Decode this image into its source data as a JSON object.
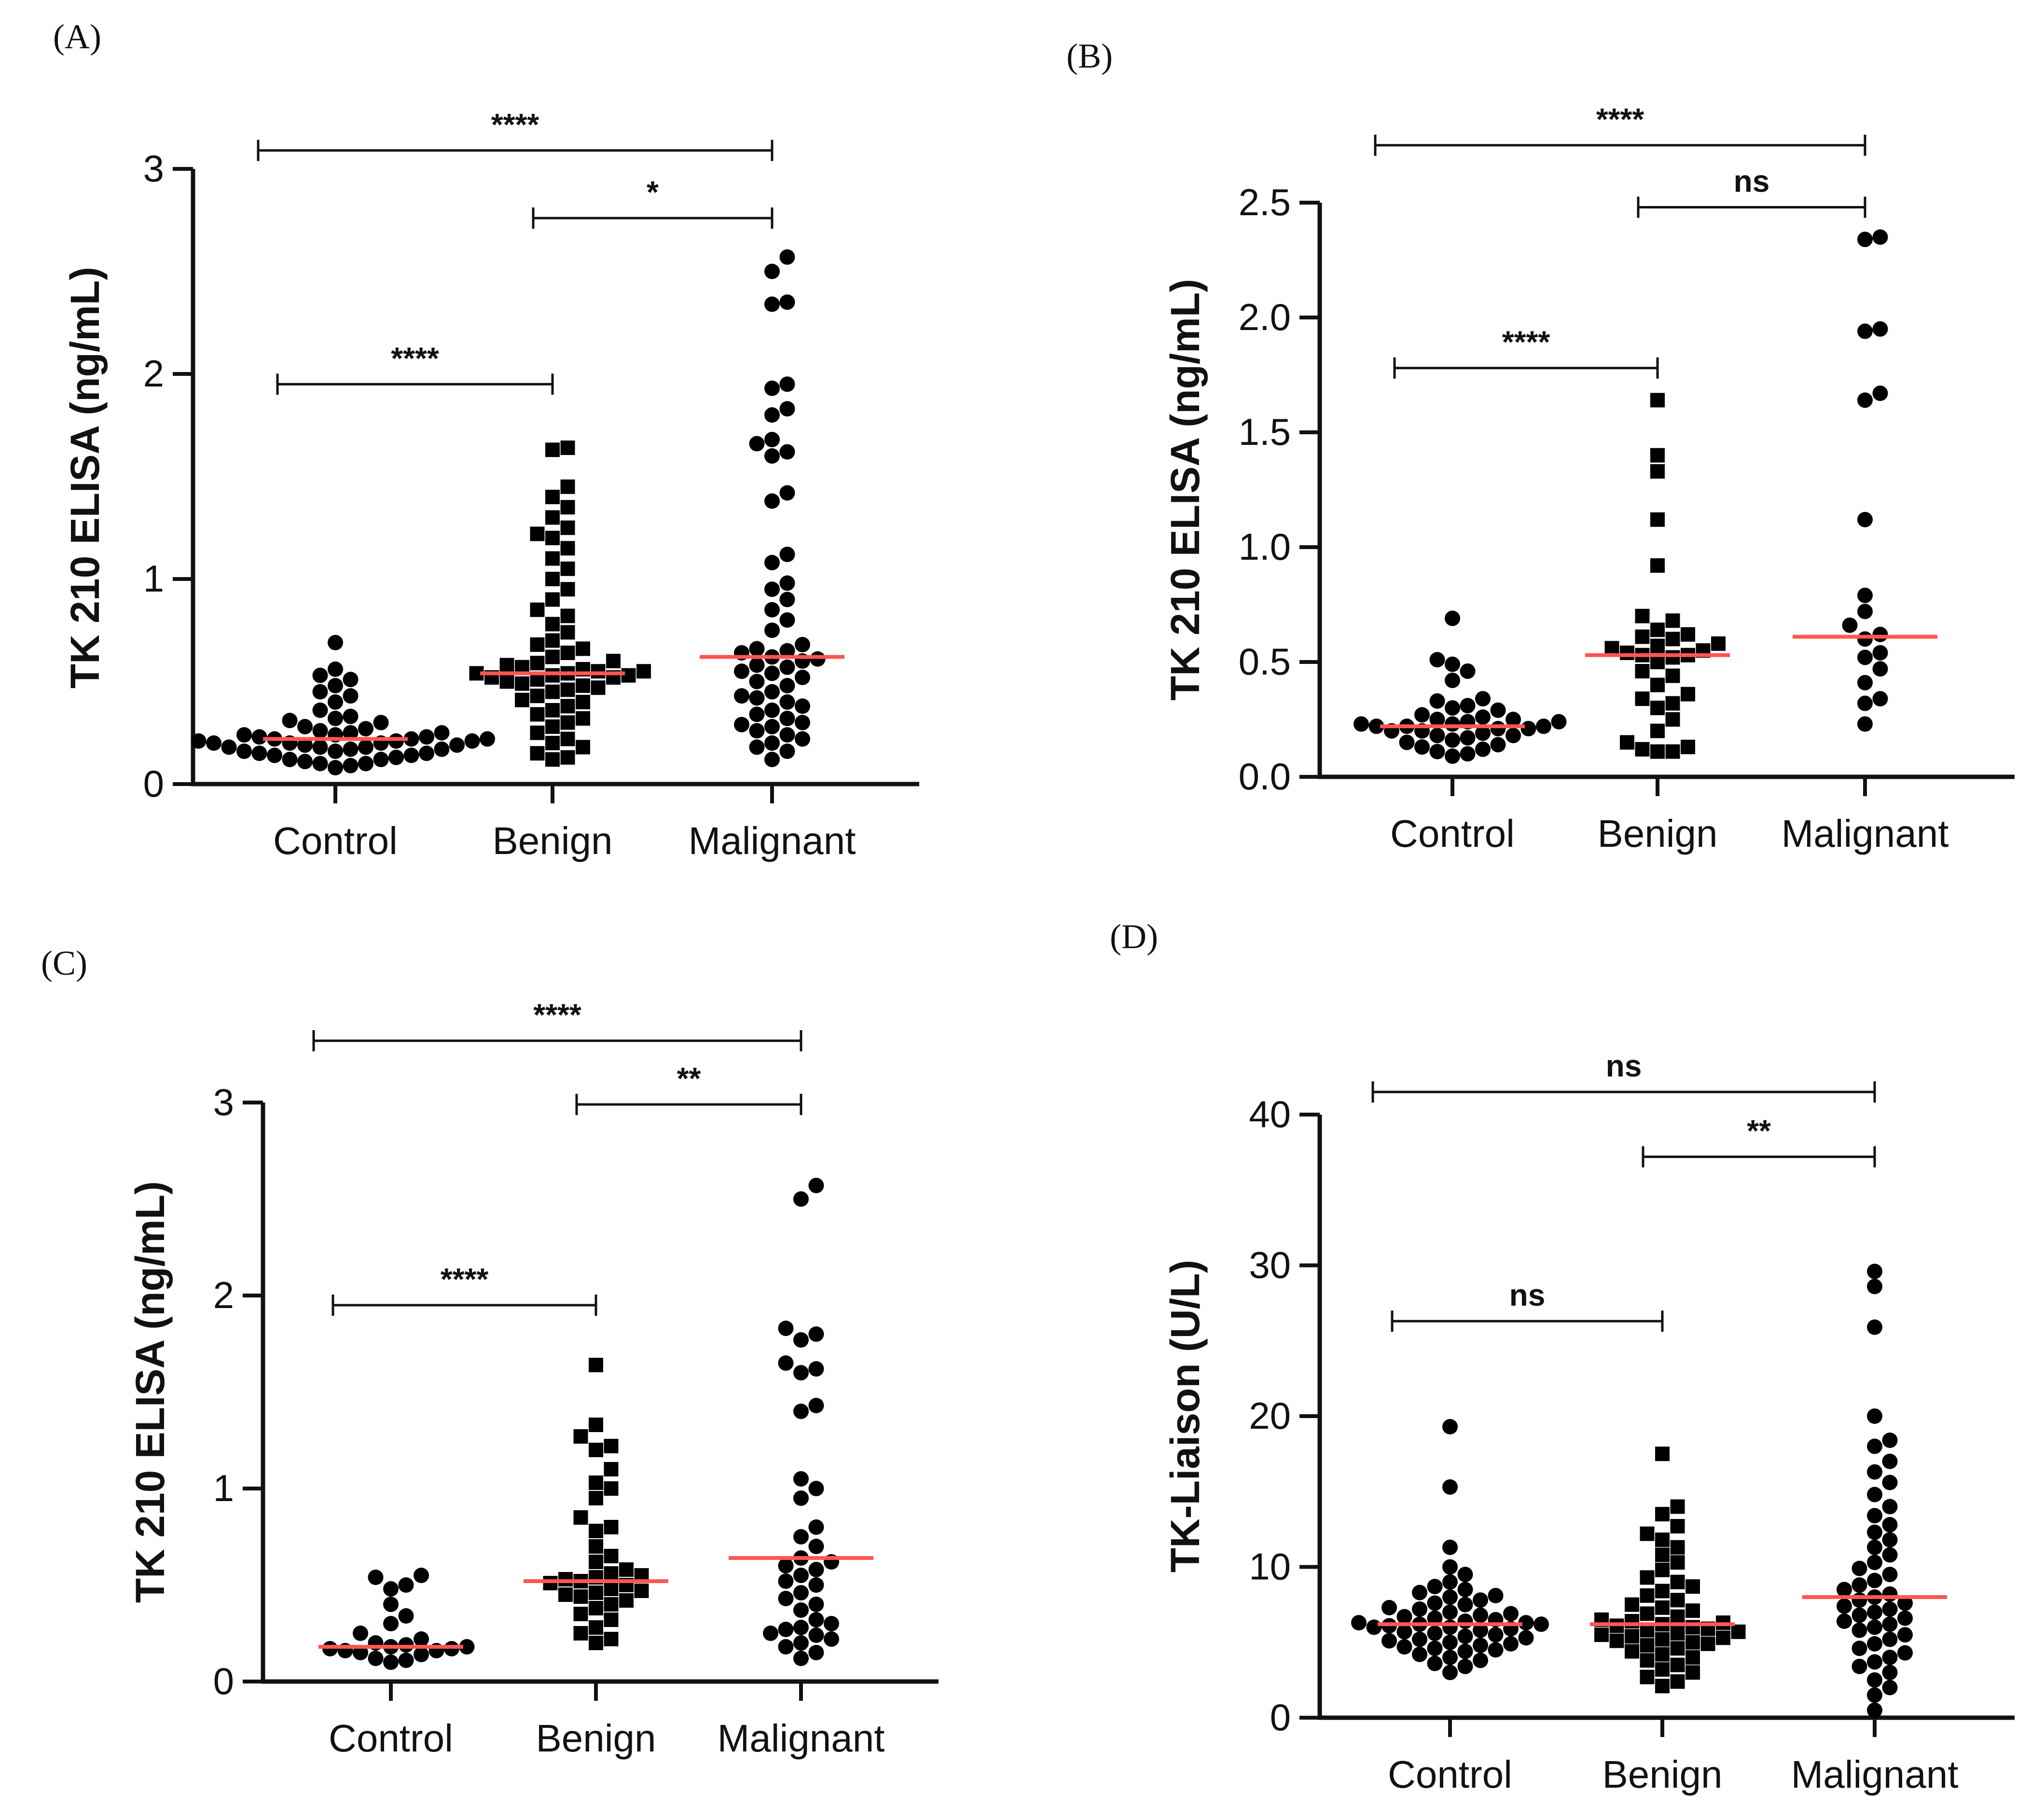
{
  "colors": {
    "marker": "#000000",
    "median": "#ff5555",
    "axis": "#111111"
  },
  "chart_data": [
    {
      "panel": "(A)",
      "type": "scatter",
      "categories": [
        "Control",
        "Benign",
        "Malignant"
      ],
      "markers": [
        "circle",
        "square",
        "circle"
      ],
      "ylabel": "TK 210 ELISA (ng/mL)",
      "ylim": [
        0,
        3
      ],
      "yticks": [
        "0",
        "1",
        "2",
        "3"
      ],
      "medians": [
        0.22,
        0.54,
        0.62
      ],
      "series": [
        {
          "values": [
            0.69,
            0.56,
            0.53,
            0.51,
            0.48,
            0.45,
            0.43,
            0.4,
            0.36,
            0.33,
            0.32,
            0.31,
            0.3,
            0.28,
            0.27,
            0.26,
            0.25,
            0.25,
            0.24,
            0.24,
            0.23,
            0.23,
            0.22,
            0.22,
            0.22,
            0.21,
            0.21,
            0.21,
            0.2,
            0.2,
            0.2,
            0.19,
            0.19,
            0.18,
            0.18,
            0.18,
            0.17,
            0.17,
            0.16,
            0.16,
            0.15,
            0.15,
            0.14,
            0.14,
            0.13,
            0.12,
            0.12,
            0.11,
            0.1,
            0.1,
            0.09,
            0.08
          ]
        },
        {
          "values": [
            1.64,
            1.63,
            1.45,
            1.4,
            1.35,
            1.3,
            1.25,
            1.22,
            1.2,
            1.15,
            1.1,
            1.05,
            1.0,
            0.95,
            0.9,
            0.85,
            0.82,
            0.78,
            0.74,
            0.7,
            0.68,
            0.66,
            0.64,
            0.62,
            0.6,
            0.59,
            0.58,
            0.57,
            0.56,
            0.55,
            0.55,
            0.54,
            0.54,
            0.53,
            0.53,
            0.52,
            0.52,
            0.51,
            0.5,
            0.49,
            0.48,
            0.47,
            0.46,
            0.45,
            0.43,
            0.41,
            0.4,
            0.38,
            0.36,
            0.34,
            0.32,
            0.3,
            0.28,
            0.25,
            0.22,
            0.2,
            0.18,
            0.15,
            0.13,
            0.12
          ]
        },
        {
          "values": [
            2.57,
            2.5,
            2.35,
            2.34,
            1.95,
            1.93,
            1.83,
            1.8,
            1.68,
            1.66,
            1.62,
            1.6,
            1.42,
            1.38,
            1.12,
            1.08,
            0.98,
            0.95,
            0.9,
            0.85,
            0.8,
            0.75,
            0.68,
            0.66,
            0.65,
            0.64,
            0.62,
            0.61,
            0.6,
            0.58,
            0.57,
            0.55,
            0.54,
            0.52,
            0.5,
            0.48,
            0.45,
            0.43,
            0.42,
            0.4,
            0.38,
            0.36,
            0.34,
            0.32,
            0.3,
            0.29,
            0.28,
            0.26,
            0.24,
            0.22,
            0.2,
            0.18,
            0.16,
            0.12
          ]
        }
      ],
      "comparisons": [
        {
          "from": 0,
          "to": 2,
          "label": "****",
          "level": 3.09
        },
        {
          "from": 1,
          "to": 2,
          "label": "*",
          "level": 2.76
        },
        {
          "from": 0,
          "to": 1,
          "label": "****",
          "level": 1.95
        }
      ]
    },
    {
      "panel": "(B)",
      "type": "scatter",
      "categories": [
        "Control",
        "Benign",
        "Malignant"
      ],
      "markers": [
        "circle",
        "square",
        "circle"
      ],
      "ylabel": "TK 210 ELISA (ng/mL)",
      "ylim": [
        0,
        2.5
      ],
      "yticks": [
        "0.0",
        "0.5",
        "1.0",
        "1.5",
        "2.0",
        "2.5"
      ],
      "medians": [
        0.22,
        0.53,
        0.61
      ],
      "series": [
        {
          "values": [
            0.69,
            0.51,
            0.49,
            0.46,
            0.42,
            0.34,
            0.33,
            0.31,
            0.3,
            0.29,
            0.27,
            0.26,
            0.25,
            0.25,
            0.24,
            0.24,
            0.23,
            0.23,
            0.22,
            0.22,
            0.22,
            0.21,
            0.21,
            0.2,
            0.2,
            0.19,
            0.18,
            0.18,
            0.17,
            0.16,
            0.15,
            0.14,
            0.13,
            0.12,
            0.11,
            0.1,
            0.09
          ]
        },
        {
          "values": [
            1.64,
            1.4,
            1.33,
            1.12,
            0.92,
            0.7,
            0.68,
            0.64,
            0.62,
            0.61,
            0.6,
            0.58,
            0.57,
            0.56,
            0.55,
            0.54,
            0.53,
            0.53,
            0.52,
            0.5,
            0.46,
            0.44,
            0.4,
            0.36,
            0.34,
            0.32,
            0.3,
            0.25,
            0.2,
            0.15,
            0.13,
            0.12,
            0.11,
            0.11
          ]
        },
        {
          "values": [
            2.35,
            2.34,
            1.95,
            1.94,
            1.67,
            1.64,
            1.12,
            0.79,
            0.72,
            0.66,
            0.62,
            0.6,
            0.54,
            0.52,
            0.47,
            0.41,
            0.34,
            0.32,
            0.23
          ]
        }
      ],
      "comparisons": [
        {
          "from": 0,
          "to": 2,
          "label": "****",
          "level": 2.75
        },
        {
          "from": 1,
          "to": 2,
          "label": "ns",
          "level": 2.48
        },
        {
          "from": 0,
          "to": 1,
          "label": "****",
          "level": 1.78
        }
      ]
    },
    {
      "panel": "(C)",
      "type": "scatter",
      "categories": [
        "Control",
        "Benign",
        "Malignant"
      ],
      "markers": [
        "circle",
        "square",
        "circle"
      ],
      "ylabel": "TK 210 ELISA (ng/mL)",
      "ylim": [
        0,
        3
      ],
      "yticks": [
        "0",
        "1",
        "2",
        "3"
      ],
      "medians": [
        0.18,
        0.52,
        0.64
      ],
      "series": [
        {
          "values": [
            0.55,
            0.54,
            0.5,
            0.48,
            0.4,
            0.34,
            0.3,
            0.25,
            0.22,
            0.2,
            0.19,
            0.18,
            0.18,
            0.17,
            0.17,
            0.16,
            0.16,
            0.15,
            0.14,
            0.12,
            0.11,
            0.1
          ]
        },
        {
          "values": [
            1.64,
            1.33,
            1.27,
            1.22,
            1.2,
            1.1,
            1.03,
            1.0,
            0.95,
            0.85,
            0.8,
            0.78,
            0.7,
            0.65,
            0.62,
            0.58,
            0.56,
            0.55,
            0.54,
            0.53,
            0.52,
            0.51,
            0.5,
            0.48,
            0.47,
            0.46,
            0.45,
            0.44,
            0.42,
            0.4,
            0.38,
            0.35,
            0.32,
            0.28,
            0.25,
            0.22,
            0.2
          ]
        },
        {
          "values": [
            2.57,
            2.5,
            1.83,
            1.8,
            1.77,
            1.65,
            1.62,
            1.6,
            1.43,
            1.4,
            1.05,
            1.0,
            0.95,
            0.8,
            0.75,
            0.7,
            0.64,
            0.62,
            0.6,
            0.58,
            0.55,
            0.52,
            0.5,
            0.46,
            0.43,
            0.4,
            0.37,
            0.32,
            0.3,
            0.28,
            0.27,
            0.25,
            0.24,
            0.22,
            0.2,
            0.18,
            0.15,
            0.12
          ]
        }
      ],
      "comparisons": [
        {
          "from": 0,
          "to": 2,
          "label": "****",
          "level": 3.32
        },
        {
          "from": 1,
          "to": 2,
          "label": "**",
          "level": 2.99
        },
        {
          "from": 0,
          "to": 1,
          "label": "****",
          "level": 1.95
        }
      ]
    },
    {
      "panel": "(D)",
      "type": "scatter",
      "categories": [
        "Control",
        "Benign",
        "Malignant"
      ],
      "markers": [
        "circle",
        "square",
        "circle"
      ],
      "ylabel": "TK-Liaison (U/L)",
      "ylim": [
        0,
        40
      ],
      "yticks": [
        "0",
        "10",
        "20",
        "30",
        "40"
      ],
      "medians": [
        6.2,
        6.2,
        8.0
      ],
      "series": [
        {
          "values": [
            19.3,
            15.3,
            11.3,
            10.0,
            9.5,
            9.0,
            8.7,
            8.5,
            8.3,
            8.1,
            8.0,
            7.8,
            7.6,
            7.5,
            7.3,
            7.2,
            7.0,
            6.9,
            6.8,
            6.7,
            6.6,
            6.5,
            6.4,
            6.3,
            6.3,
            6.2,
            6.2,
            6.1,
            6.0,
            6.0,
            5.9,
            5.8,
            5.7,
            5.6,
            5.5,
            5.4,
            5.3,
            5.2,
            5.1,
            5.0,
            4.9,
            4.8,
            4.7,
            4.6,
            4.5,
            4.4,
            4.2,
            4.0,
            3.8,
            3.6,
            3.4,
            3.0
          ]
        },
        {
          "values": [
            17.5,
            14.0,
            13.5,
            12.7,
            12.2,
            11.8,
            11.3,
            10.8,
            10.3,
            9.8,
            9.3,
            9.0,
            8.7,
            8.4,
            8.1,
            7.8,
            7.5,
            7.3,
            7.1,
            6.9,
            6.7,
            6.5,
            6.4,
            6.3,
            6.2,
            6.1,
            6.0,
            5.9,
            5.8,
            5.7,
            5.6,
            5.5,
            5.4,
            5.3,
            5.2,
            5.1,
            5.0,
            4.9,
            4.8,
            4.6,
            4.4,
            4.2,
            4.0,
            3.8,
            3.5,
            3.2,
            3.0,
            2.7,
            2.4,
            2.1
          ]
        },
        {
          "values": [
            29.6,
            28.6,
            25.9,
            20.0,
            18.4,
            18.0,
            17.0,
            16.3,
            15.6,
            14.8,
            14.0,
            13.4,
            12.8,
            12.3,
            11.8,
            11.3,
            10.8,
            10.3,
            9.9,
            9.5,
            9.1,
            8.8,
            8.5,
            8.2,
            8.0,
            7.8,
            7.6,
            7.4,
            7.2,
            7.0,
            6.8,
            6.6,
            6.4,
            6.2,
            6.0,
            5.8,
            5.5,
            5.2,
            4.9,
            4.6,
            4.3,
            4.0,
            3.7,
            3.4,
            3.0,
            2.5,
            2.0,
            1.5,
            0.5
          ]
        }
      ],
      "comparisons": [
        {
          "from": 0,
          "to": 2,
          "label": "ns",
          "level": 41.5
        },
        {
          "from": 1,
          "to": 2,
          "label": "**",
          "level": 37.2
        },
        {
          "from": 0,
          "to": 1,
          "label": "ns",
          "level": 26.3
        }
      ]
    }
  ]
}
